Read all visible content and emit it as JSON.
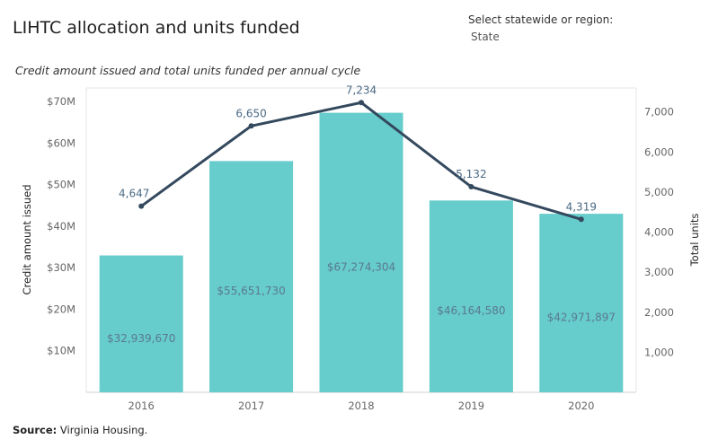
{
  "header": {
    "title": "LIHTC allocation and units funded",
    "subtitle": "Credit amount issued and total units funded per annual cycle"
  },
  "filter": {
    "label": "Select statewide or region:",
    "value": "State"
  },
  "footer": {
    "source_label": "Source:",
    "source_text": " Virginia Housing."
  },
  "colors": {
    "bar": "#66cccc",
    "line": "#34495e"
  },
  "chart_data": {
    "type": "bar",
    "categories": [
      "2016",
      "2017",
      "2018",
      "2019",
      "2020"
    ],
    "series": [
      {
        "name": "Credit amount issued",
        "type": "bar",
        "axis": "left",
        "values": [
          32939670,
          55651730,
          67274304,
          46164580,
          42971897
        ],
        "labels": [
          "$32,939,670",
          "$55,651,730",
          "$67,274,304",
          "$46,164,580",
          "$42,971,897"
        ]
      },
      {
        "name": "Total units",
        "type": "line",
        "axis": "right",
        "values": [
          4647,
          6650,
          7234,
          5132,
          4319
        ],
        "labels": [
          "4,647",
          "6,650",
          "7,234",
          "5,132",
          "4,319"
        ]
      }
    ],
    "ylabel": "Credit amount issued",
    "y2label": "Total units",
    "ylim": [
      0,
      70000000
    ],
    "y2lim": [
      0,
      7800000
    ],
    "y2lim_units": [
      0,
      7800
    ],
    "yticks": [
      10000000,
      20000000,
      30000000,
      40000000,
      50000000,
      60000000,
      70000000
    ],
    "yticklabels": [
      "$10M",
      "$20M",
      "$30M",
      "$40M",
      "$50M",
      "$60M",
      "$70M"
    ],
    "y2ticks": [
      1000,
      2000,
      3000,
      4000,
      5000,
      6000,
      7000
    ],
    "y2ticklabels": [
      "1,000",
      "2,000",
      "3,000",
      "4,000",
      "5,000",
      "6,000",
      "7,000"
    ],
    "grid": false
  }
}
